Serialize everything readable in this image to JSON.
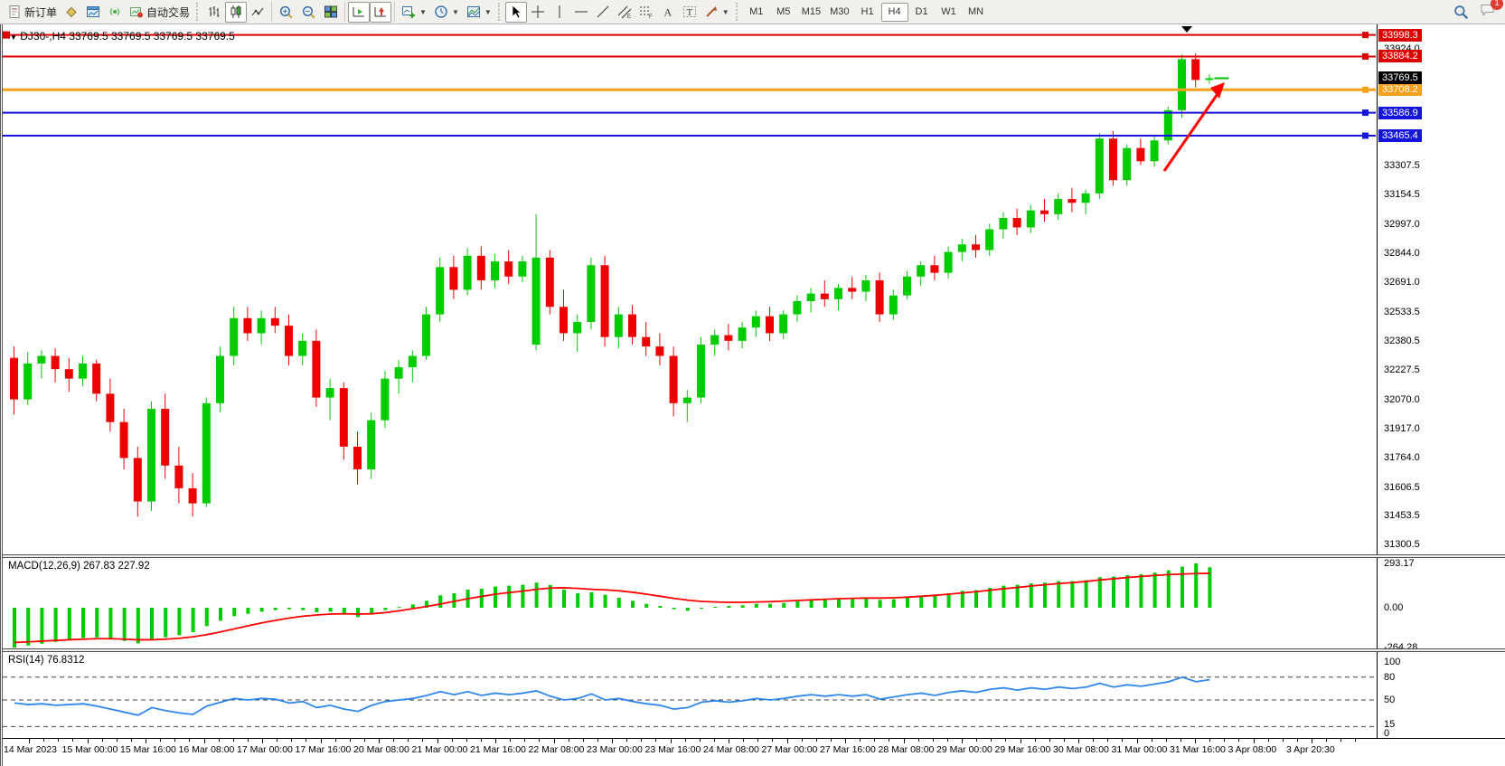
{
  "toolbar": {
    "new_order_label": "新订单",
    "autotrading_label": "自动交易",
    "timeframes": [
      "M1",
      "M5",
      "M15",
      "M30",
      "H1",
      "H4",
      "D1",
      "W1",
      "MN"
    ],
    "active_timeframe": "H4",
    "chat_badge": "1"
  },
  "chart_title": "DJ30-,H4  33769.5 33769.5 33769.5 33769.5",
  "macd_title": "MACD(12,26,9) 267.83 227.92",
  "rsi_title": "RSI(14) 76.8312",
  "chart_data": {
    "type": "candlestick",
    "symbol": "DJ30-",
    "timeframe": "H4",
    "current_bar": {
      "open": 33769.5,
      "high": 33769.5,
      "low": 33769.5,
      "close": 33769.5
    },
    "current_price": {
      "value": "33769.5",
      "price": 33769.5,
      "badge_color": "#000000"
    },
    "price_axis": {
      "ylim": [
        31300.5,
        33998.3
      ],
      "ticks": [
        "33924.0",
        "33307.5",
        "33154.5",
        "32997.0",
        "32844.0",
        "32691.0",
        "32533.5",
        "32380.5",
        "32227.5",
        "32070.0",
        "31917.0",
        "31764.0",
        "31606.5",
        "31453.5",
        "31300.5"
      ]
    },
    "x_labels": [
      "14 Mar 2023",
      "15 Mar 00:00",
      "15 Mar 16:00",
      "16 Mar 08:00",
      "17 Mar 00:00",
      "17 Mar 16:00",
      "20 Mar 08:00",
      "21 Mar 00:00",
      "21 Mar 16:00",
      "22 Mar 08:00",
      "23 Mar 00:00",
      "23 Mar 16:00",
      "24 Mar 08:00",
      "27 Mar 00:00",
      "27 Mar 16:00",
      "28 Mar 08:00",
      "29 Mar 00:00",
      "29 Mar 16:00",
      "30 Mar 08:00",
      "31 Mar 00:00",
      "31 Mar 16:00",
      "3 Apr 08:00",
      "3 Apr 20:30"
    ],
    "colors": {
      "up": "#00cc00",
      "down": "#ee0000",
      "background": "#ffffff"
    },
    "horizontal_lines": [
      {
        "price": 33998.3,
        "label": "33998.3",
        "color": "#dd0000",
        "width": 2,
        "left_handle": true
      },
      {
        "price": 33884.2,
        "label": "33884.2",
        "color": "#dd0000",
        "width": 2,
        "left_handle": false
      },
      {
        "price": 33708.2,
        "label": "33708.2",
        "color": "#f6a01a",
        "width": 3,
        "left_handle": false
      },
      {
        "price": 33586.9,
        "label": "33586.9",
        "color": "#1414dd",
        "width": 2,
        "left_handle": false
      },
      {
        "price": 33465.4,
        "label": "33465.4",
        "color": "#1414dd",
        "width": 2,
        "left_handle": false
      }
    ],
    "annotations": {
      "arrow": {
        "color": "#ff0000",
        "from_price_x": 1285,
        "to_price_x": 1352
      }
    },
    "candles": [
      [
        32290,
        32350,
        31990,
        32070
      ],
      [
        32070,
        32320,
        32040,
        32260
      ],
      [
        32260,
        32330,
        32180,
        32300
      ],
      [
        32300,
        32340,
        32160,
        32230
      ],
      [
        32230,
        32290,
        32110,
        32180
      ],
      [
        32180,
        32300,
        32140,
        32260
      ],
      [
        32260,
        32280,
        32060,
        32100
      ],
      [
        32100,
        32180,
        31900,
        31950
      ],
      [
        31950,
        32020,
        31700,
        31760
      ],
      [
        31760,
        31820,
        31450,
        31530
      ],
      [
        31530,
        32060,
        31480,
        32020
      ],
      [
        32020,
        32100,
        31650,
        31720
      ],
      [
        31720,
        31820,
        31520,
        31600
      ],
      [
        31600,
        31680,
        31450,
        31520
      ],
      [
        31520,
        32080,
        31500,
        32050
      ],
      [
        32050,
        32350,
        32000,
        32300
      ],
      [
        32300,
        32560,
        32250,
        32500
      ],
      [
        32500,
        32560,
        32380,
        32420
      ],
      [
        32420,
        32540,
        32360,
        32500
      ],
      [
        32500,
        32560,
        32420,
        32460
      ],
      [
        32460,
        32520,
        32250,
        32300
      ],
      [
        32300,
        32420,
        32250,
        32380
      ],
      [
        32380,
        32440,
        32030,
        32080
      ],
      [
        32080,
        32180,
        31960,
        32130
      ],
      [
        32130,
        32160,
        31750,
        31820
      ],
      [
        31820,
        31900,
        31620,
        31700
      ],
      [
        31700,
        32000,
        31650,
        31960
      ],
      [
        31960,
        32220,
        31920,
        32180
      ],
      [
        32180,
        32280,
        32100,
        32240
      ],
      [
        32240,
        32330,
        32160,
        32300
      ],
      [
        32300,
        32560,
        32280,
        32520
      ],
      [
        32520,
        32820,
        32480,
        32770
      ],
      [
        32770,
        32830,
        32600,
        32650
      ],
      [
        32650,
        32870,
        32620,
        32830
      ],
      [
        32830,
        32880,
        32650,
        32700
      ],
      [
        32700,
        32840,
        32660,
        32800
      ],
      [
        32800,
        32860,
        32680,
        32720
      ],
      [
        32720,
        32830,
        32690,
        32800
      ],
      [
        32360,
        33050,
        32330,
        32820
      ],
      [
        32820,
        32860,
        32520,
        32560
      ],
      [
        32560,
        32650,
        32380,
        32420
      ],
      [
        32420,
        32520,
        32320,
        32480
      ],
      [
        32480,
        32820,
        32440,
        32780
      ],
      [
        32780,
        32830,
        32350,
        32400
      ],
      [
        32400,
        32560,
        32340,
        32520
      ],
      [
        32520,
        32570,
        32360,
        32400
      ],
      [
        32400,
        32480,
        32300,
        32350
      ],
      [
        32350,
        32420,
        32250,
        32300
      ],
      [
        32300,
        32350,
        31980,
        32050
      ],
      [
        32050,
        32120,
        31950,
        32080
      ],
      [
        32080,
        32400,
        32050,
        32360
      ],
      [
        32360,
        32440,
        32300,
        32410
      ],
      [
        32410,
        32470,
        32330,
        32380
      ],
      [
        32380,
        32480,
        32340,
        32450
      ],
      [
        32450,
        32540,
        32400,
        32510
      ],
      [
        32510,
        32560,
        32380,
        32420
      ],
      [
        32420,
        32540,
        32390,
        32520
      ],
      [
        32520,
        32620,
        32480,
        32590
      ],
      [
        32590,
        32660,
        32530,
        32630
      ],
      [
        32630,
        32700,
        32560,
        32600
      ],
      [
        32600,
        32680,
        32540,
        32660
      ],
      [
        32660,
        32720,
        32600,
        32640
      ],
      [
        32640,
        32730,
        32590,
        32700
      ],
      [
        32700,
        32740,
        32480,
        32520
      ],
      [
        32520,
        32650,
        32490,
        32620
      ],
      [
        32620,
        32750,
        32600,
        32720
      ],
      [
        32720,
        32800,
        32670,
        32780
      ],
      [
        32780,
        32830,
        32700,
        32740
      ],
      [
        32740,
        32880,
        32710,
        32850
      ],
      [
        32850,
        32920,
        32800,
        32890
      ],
      [
        32890,
        32940,
        32820,
        32860
      ],
      [
        32860,
        33000,
        32830,
        32970
      ],
      [
        32970,
        33060,
        32920,
        33030
      ],
      [
        33030,
        33080,
        32940,
        32980
      ],
      [
        32980,
        33100,
        32950,
        33070
      ],
      [
        33070,
        33130,
        33010,
        33050
      ],
      [
        33050,
        33160,
        33020,
        33130
      ],
      [
        33130,
        33190,
        33060,
        33110
      ],
      [
        33110,
        33180,
        33050,
        33160
      ],
      [
        33160,
        33480,
        33130,
        33450
      ],
      [
        33450,
        33490,
        33200,
        33230
      ],
      [
        33230,
        33420,
        33200,
        33400
      ],
      [
        33400,
        33450,
        33310,
        33330
      ],
      [
        33330,
        33470,
        33300,
        33440
      ],
      [
        33440,
        33620,
        33420,
        33600
      ],
      [
        33600,
        33895,
        33560,
        33870
      ],
      [
        33870,
        33900,
        33720,
        33760
      ],
      [
        33760,
        33790,
        33740,
        33769.5
      ]
    ],
    "indicators": {
      "macd": {
        "name": "MACD(12,26,9)",
        "value": 267.83,
        "signal_value": 227.92,
        "scale": [
          "293.17",
          "0.00",
          "-264.28"
        ],
        "hist_color": "#00cc00",
        "signal_color": "#ff0000",
        "histogram": [
          -264.28,
          -250,
          -238,
          -226,
          -212,
          -200,
          -196,
          -206,
          -220,
          -236,
          -215,
          -196,
          -182,
          -162,
          -122,
          -86,
          -56,
          -40,
          -26,
          -16,
          -10,
          -16,
          -30,
          -26,
          -46,
          -62,
          -42,
          -16,
          5,
          22,
          46,
          82,
          96,
          120,
          126,
          140,
          146,
          152,
          166,
          150,
          120,
          96,
          102,
          86,
          66,
          46,
          26,
          12,
          -10,
          -20,
          -6,
          6,
          12,
          16,
          26,
          26,
          32,
          42,
          50,
          52,
          56,
          56,
          62,
          52,
          56,
          66,
          76,
          82,
          96,
          112,
          116,
          132,
          146,
          152,
          162,
          166,
          176,
          176,
          182,
          202,
          206,
          216,
          222,
          232,
          248,
          272,
          293.17,
          267.83
        ],
        "signal": [
          -230,
          -226,
          -221,
          -216,
          -212,
          -208,
          -205,
          -205,
          -208,
          -212,
          -212,
          -208,
          -202,
          -192,
          -178,
          -160,
          -140,
          -120,
          -100,
          -84,
          -68,
          -56,
          -48,
          -42,
          -40,
          -42,
          -40,
          -32,
          -20,
          -6,
          8,
          25,
          42,
          60,
          75,
          90,
          100,
          110,
          122,
          130,
          132,
          128,
          122,
          118,
          112,
          102,
          90,
          76,
          62,
          50,
          42,
          38,
          36,
          36,
          38,
          40,
          44,
          48,
          52,
          56,
          60,
          62,
          64,
          64,
          66,
          70,
          76,
          82,
          90,
          98,
          106,
          116,
          126,
          134,
          144,
          152,
          160,
          166,
          174,
          184,
          192,
          200,
          207,
          214,
          219,
          223,
          226,
          227.92
        ]
      },
      "rsi": {
        "name": "RSI(14)",
        "value": 76.8312,
        "levels": [
          80,
          50,
          15
        ],
        "scale_labels": [
          "100",
          "80",
          "50",
          "15",
          "0"
        ],
        "color": "#2f86eb",
        "values": [
          46,
          44,
          45,
          43,
          44,
          45,
          42,
          38,
          34,
          30,
          40,
          36,
          33,
          31,
          42,
          47,
          52,
          50,
          52,
          51,
          46,
          48,
          40,
          43,
          38,
          35,
          43,
          48,
          50,
          52,
          56,
          61,
          57,
          61,
          56,
          59,
          57,
          59,
          62,
          55,
          50,
          52,
          58,
          50,
          52,
          48,
          45,
          43,
          38,
          40,
          47,
          49,
          47,
          49,
          52,
          50,
          52,
          55,
          57,
          55,
          57,
          55,
          57,
          51,
          54,
          57,
          59,
          56,
          60,
          62,
          60,
          64,
          66,
          63,
          66,
          64,
          67,
          65,
          67,
          72,
          67,
          70,
          68,
          71,
          74,
          80,
          74,
          76.83
        ]
      }
    }
  }
}
